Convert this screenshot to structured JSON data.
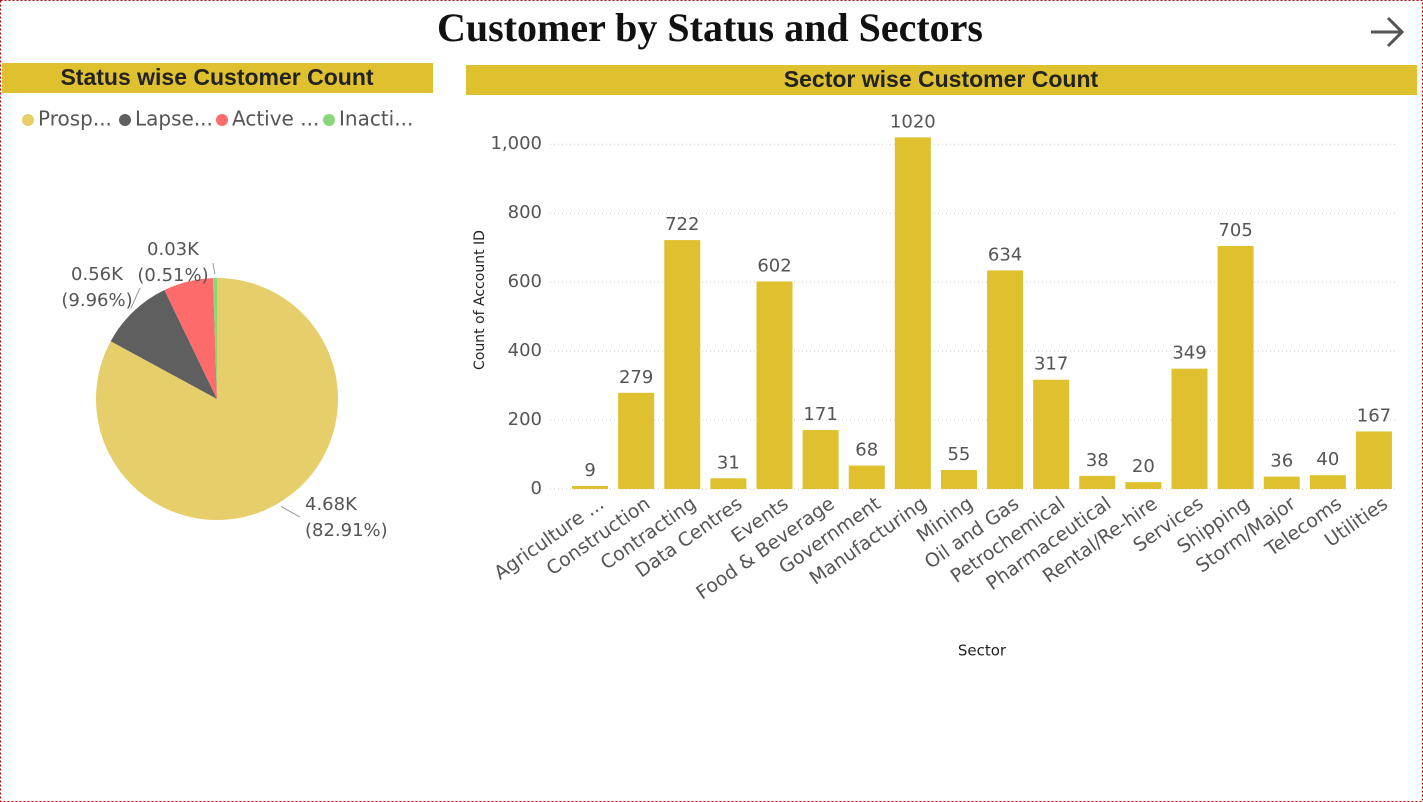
{
  "title": "Customer by Status and Sectors",
  "chart_data": [
    {
      "type": "pie",
      "title": "Status wise Customer Count",
      "categories": [
        "Prosp...",
        "Lapse...",
        "Active ...",
        "Inacti..."
      ],
      "values": [
        4680,
        560,
        374,
        30
      ],
      "value_labels": [
        [
          "4.68K",
          "(82.91%)"
        ],
        [
          "0.56K",
          "(9.96%)"
        ],
        null,
        [
          "0.03K",
          "(0.51%)"
        ]
      ],
      "colors": [
        "#E6CF6B",
        "#5F5F5F",
        "#FD6B6B",
        "#8AD67A"
      ]
    },
    {
      "type": "bar",
      "title": "Sector wise Customer Count",
      "x_label": "Sector",
      "y_label": "Count of Account ID",
      "categories": [
        "Agriculture ...",
        "Construction",
        "Contracting",
        "Data Centres",
        "Events",
        "Food & Beverage",
        "Government",
        "Manufacturing",
        "Mining",
        "Oil and Gas",
        "Petrochemical",
        "Pharmaceutical",
        "Rental/Re-hire",
        "Services",
        "Shipping",
        "Storm/Major",
        "Telecoms",
        "Utilities"
      ],
      "values": [
        9,
        279,
        722,
        31,
        602,
        171,
        68,
        1020,
        55,
        634,
        317,
        38,
        20,
        349,
        705,
        36,
        40,
        167
      ],
      "color": "#DFC12F",
      "ylim": [
        0,
        1050
      ],
      "yticks": [
        0,
        200,
        400,
        600,
        800,
        {
          "value": 1000,
          "label": "1,000"
        }
      ],
      "grid": true
    }
  ]
}
